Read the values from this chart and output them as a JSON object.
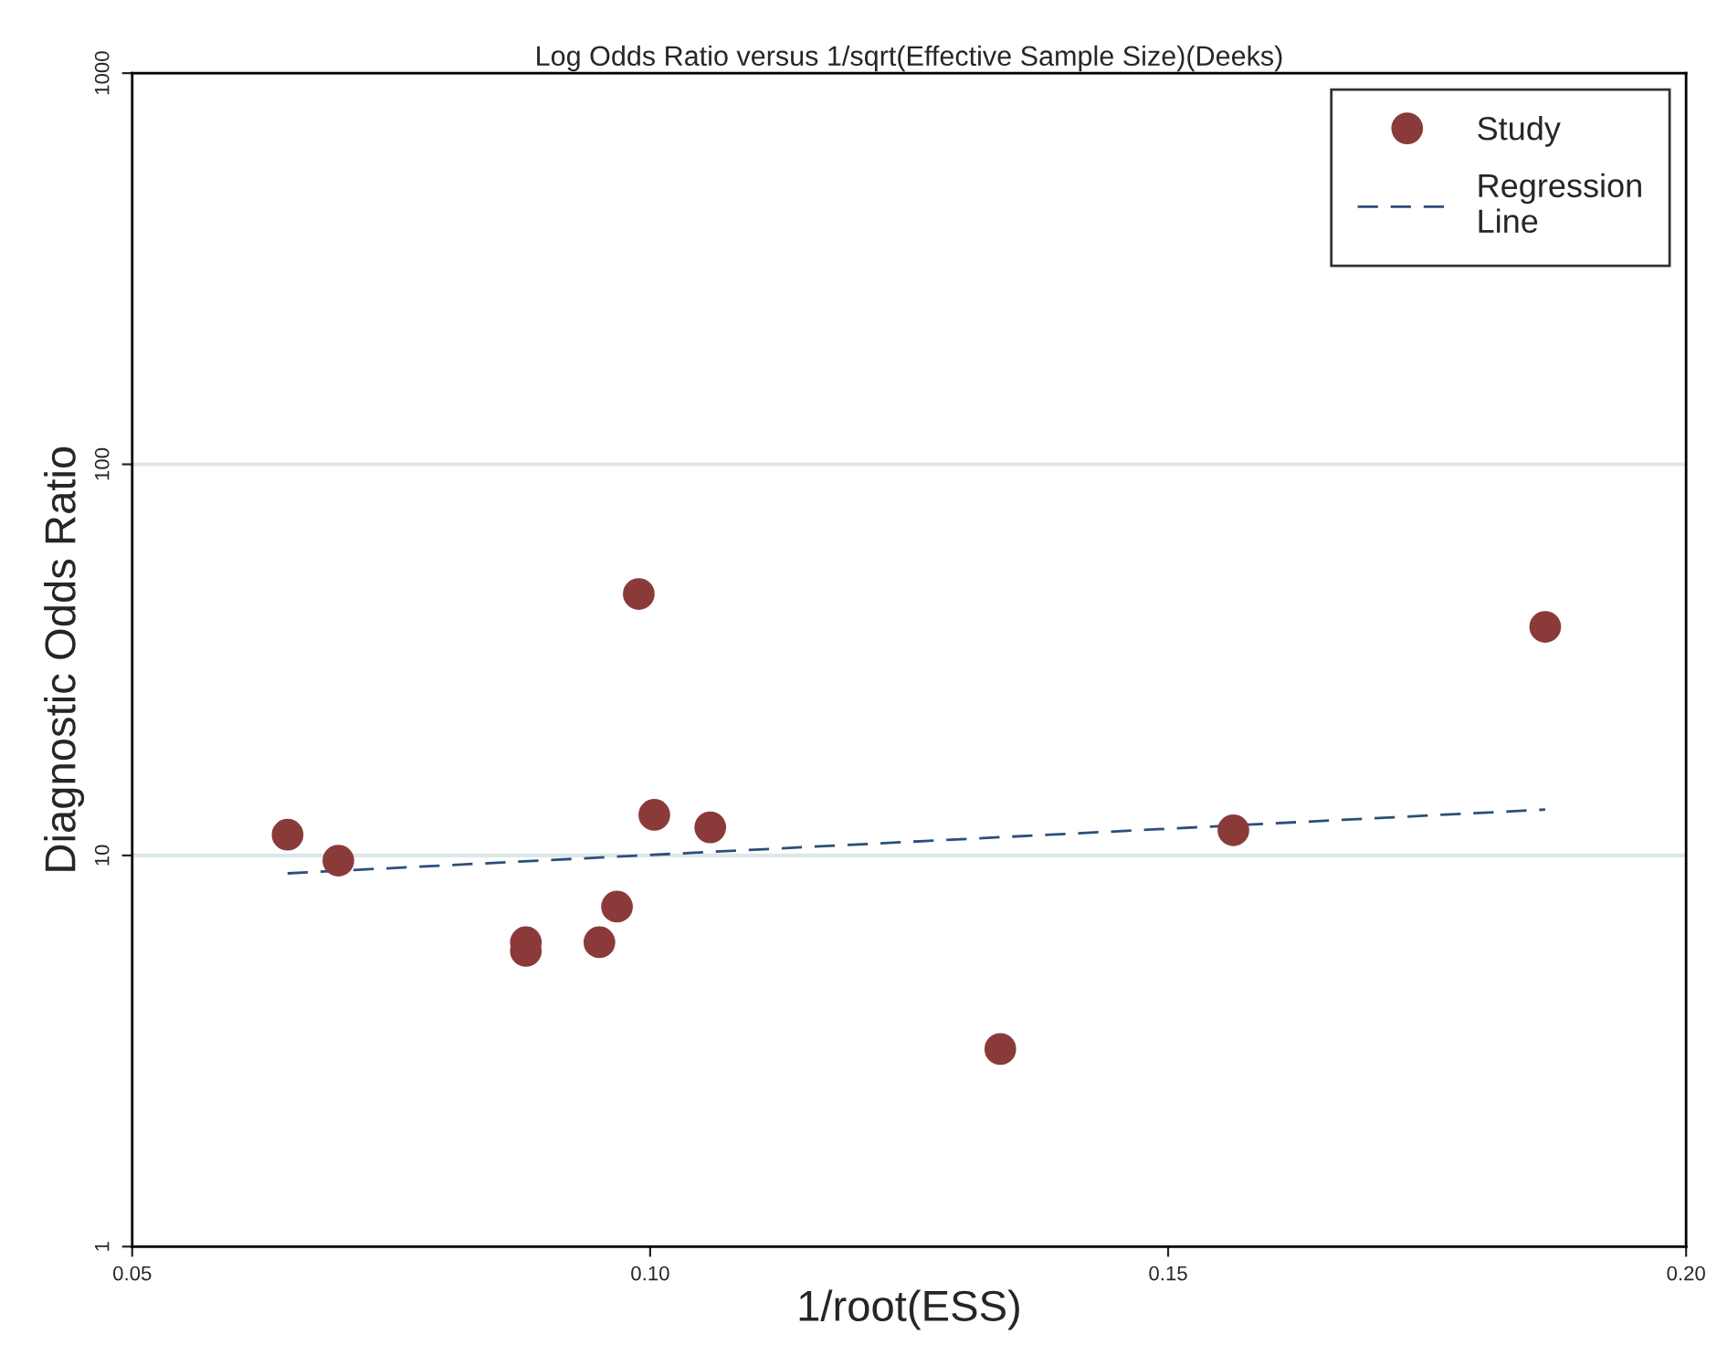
{
  "chart_data": {
    "type": "scatter",
    "title": "Log Odds Ratio versus 1/sqrt(Effective Sample Size)(Deeks)",
    "xlabel": "1/root(ESS)",
    "ylabel": "Diagnostic Odds Ratio",
    "series": [
      {
        "name": "Study",
        "color": "#8b3a3a",
        "marker": "circle",
        "x": [
          0.065,
          0.0699,
          0.088,
          0.088,
          0.0951,
          0.0968,
          0.0989,
          0.1004,
          0.1058,
          0.1338,
          0.1563,
          0.1864
        ],
        "values": [
          11.3,
          9.7,
          6.0,
          5.7,
          6.0,
          7.4,
          46.6,
          12.7,
          11.8,
          3.2,
          11.6,
          38.4
        ]
      },
      {
        "name": "Regression\nLine",
        "type": "line",
        "color": "#2b4f7a",
        "line_style": "dashed",
        "marker": "none",
        "x": [
          0.065,
          0.1864
        ],
        "values": [
          9.0,
          13.1
        ]
      }
    ],
    "log": "y",
    "xlim": [
      0.05,
      0.2
    ],
    "ylim": [
      1,
      1000
    ],
    "xticks": [
      {
        "value": 0.05,
        "label": "0.05"
      },
      {
        "value": 0.1,
        "label": "0.10"
      },
      {
        "value": 0.15,
        "label": "0.15"
      },
      {
        "value": 0.2,
        "label": "0.20"
      }
    ],
    "yticks": [
      1,
      10,
      100,
      1000
    ],
    "grid": "y",
    "legend": "top right"
  }
}
